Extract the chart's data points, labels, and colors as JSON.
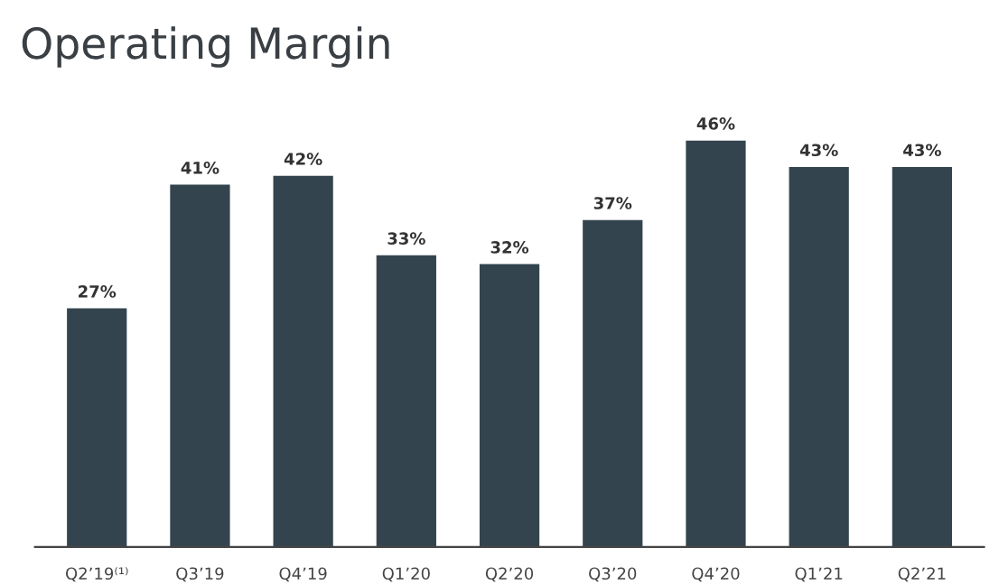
{
  "chart_data": {
    "type": "bar",
    "title": "Operating Margin",
    "categories": [
      "Q2’19⁽¹⁾",
      "Q3’19",
      "Q4’19",
      "Q1’20",
      "Q2’20",
      "Q3’20",
      "Q4’20",
      "Q1’21",
      "Q2’21"
    ],
    "values": [
      27,
      41,
      42,
      33,
      32,
      37,
      46,
      43,
      43
    ],
    "value_labels": [
      "27%",
      "41%",
      "42%",
      "33%",
      "32%",
      "37%",
      "46%",
      "43%",
      "43%"
    ],
    "color": "#34444f",
    "grid": false,
    "legend": false
  }
}
